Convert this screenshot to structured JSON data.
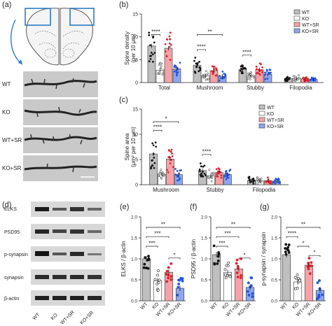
{
  "panels": {
    "a": "(a)",
    "b": "(b)",
    "c": "(c)",
    "d": "(d)",
    "e": "(e)",
    "f": "(f)",
    "g": "(g)"
  },
  "micrograph_labels": [
    "WT",
    "KO",
    "WT+SR",
    "KO+SR"
  ],
  "blot": {
    "proteins": [
      "ELKS",
      "PSD95",
      "p-synapsin",
      "synapsin",
      "β-actin"
    ],
    "lanes": [
      "WT",
      "KO",
      "WT+SR",
      "KO+SR"
    ]
  },
  "colors": {
    "WT": "#bfbfbf",
    "KO": "#ffffff",
    "WT+SR": "#f5a3a8",
    "KO+SR": "#8fa6ee",
    "dot_WT": "#111111",
    "dot_KO": "#222222",
    "dot_WTSR": "#e0202c",
    "dot_KOSR": "#2255dd"
  },
  "chart_data": [
    {
      "id": "b",
      "type": "bar",
      "ylabel": "Spine density\n(per 10 μm)",
      "ylim": [
        0,
        15
      ],
      "yticks": [
        0,
        5,
        10,
        15
      ],
      "categories": [
        "Total",
        "Mushroom",
        "Stubby",
        "Filopodia"
      ],
      "series": [
        {
          "name": "WT",
          "values": [
            8.0,
            3.8,
            2.9,
            0.9
          ]
        },
        {
          "name": "KO",
          "values": [
            2.7,
            1.5,
            1.5,
            0.9
          ]
        },
        {
          "name": "WT+SR",
          "values": [
            7.5,
            2.6,
            2.8,
            0.8
          ]
        },
        {
          "name": "KO+SR",
          "values": [
            3.0,
            1.4,
            1.8,
            0.7
          ]
        }
      ],
      "legend": "top-right",
      "annotations": [
        {
          "cat": 0,
          "from": 0,
          "to": 1,
          "y": 10.5,
          "text": "****"
        },
        {
          "cat": 1,
          "from": 0,
          "to": 3,
          "y": 10.5,
          "text": "**"
        },
        {
          "cat": 1,
          "from": 0,
          "to": 1,
          "y": 7.2,
          "text": "****"
        },
        {
          "cat": 2,
          "from": 0,
          "to": 1,
          "y": 6.0,
          "text": "****"
        }
      ]
    },
    {
      "id": "c",
      "type": "bar",
      "ylabel": "Spine area\n(μm² per 10 μm)",
      "ylim": [
        0,
        15
      ],
      "yticks": [
        0,
        5,
        10,
        15
      ],
      "categories": [
        "Mushroom",
        "Stubby",
        "Filopodia"
      ],
      "series": [
        {
          "name": "WT",
          "values": [
            6.1,
            2.8,
            0.9
          ]
        },
        {
          "name": "KO",
          "values": [
            2.1,
            1.8,
            0.8
          ]
        },
        {
          "name": "WT+SR",
          "values": [
            5.1,
            2.4,
            0.8
          ]
        },
        {
          "name": "KO+SR",
          "values": [
            2.0,
            2.0,
            0.7
          ]
        }
      ],
      "legend": "top-right",
      "annotations": [
        {
          "cat": 0,
          "from": 0,
          "to": 3,
          "y": 12.5,
          "text": "*"
        },
        {
          "cat": 0,
          "from": 0,
          "to": 1,
          "y": 10.8,
          "text": "****"
        },
        {
          "cat": 1,
          "from": 0,
          "to": 1,
          "y": 6.0,
          "text": "****"
        }
      ]
    },
    {
      "id": "e",
      "type": "bar",
      "ylabel": "ELKS / β-actin",
      "ylim": [
        0,
        2.0
      ],
      "yticks": [
        0.0,
        0.5,
        1.0,
        1.5,
        2.0
      ],
      "categories": [
        "WT",
        "KO",
        "WT+SR",
        "KO+SR"
      ],
      "values": [
        1.0,
        0.48,
        0.68,
        0.3
      ],
      "annotations": [
        {
          "from": 0,
          "to": 3,
          "y": 1.75,
          "text": "**"
        },
        {
          "from": 0,
          "to": 2,
          "y": 1.53,
          "text": "***"
        },
        {
          "from": 0,
          "to": 1,
          "y": 1.3,
          "text": "***"
        },
        {
          "from": 2,
          "to": 3,
          "y": 1.02,
          "text": "*"
        }
      ]
    },
    {
      "id": "f",
      "type": "bar",
      "ylabel": "PSD95 / β-actin",
      "ylim": [
        0,
        2.0
      ],
      "yticks": [
        0.0,
        0.5,
        1.0,
        1.5,
        2.0
      ],
      "categories": [
        "WT",
        "KO",
        "WT+SR",
        "KO+SR"
      ],
      "values": [
        1.1,
        0.68,
        0.76,
        0.32
      ],
      "annotations": [
        {
          "from": 0,
          "to": 3,
          "y": 1.75,
          "text": "**"
        },
        {
          "from": 0,
          "to": 2,
          "y": 1.53,
          "text": "***"
        },
        {
          "from": 0,
          "to": 1,
          "y": 1.3,
          "text": "***"
        },
        {
          "from": 2,
          "to": 3,
          "y": 1.02,
          "text": "*"
        }
      ]
    },
    {
      "id": "g",
      "type": "bar",
      "ylabel": "p-synapsin / synapsin",
      "ylim": [
        0,
        2.0
      ],
      "yticks": [
        0.0,
        0.5,
        1.0,
        1.5,
        2.0
      ],
      "categories": [
        "WT",
        "KO",
        "WT+SR",
        "KO+SR"
      ],
      "values": [
        1.1,
        0.45,
        0.85,
        0.25
      ],
      "annotations": [
        {
          "from": 0,
          "to": 3,
          "y": 1.75,
          "text": "**"
        },
        {
          "from": 0,
          "to": 1,
          "y": 1.53,
          "text": "****"
        },
        {
          "from": 1,
          "to": 2,
          "y": 1.3,
          "text": "*"
        },
        {
          "from": 2,
          "to": 3,
          "y": 1.08,
          "text": "*"
        }
      ]
    }
  ]
}
